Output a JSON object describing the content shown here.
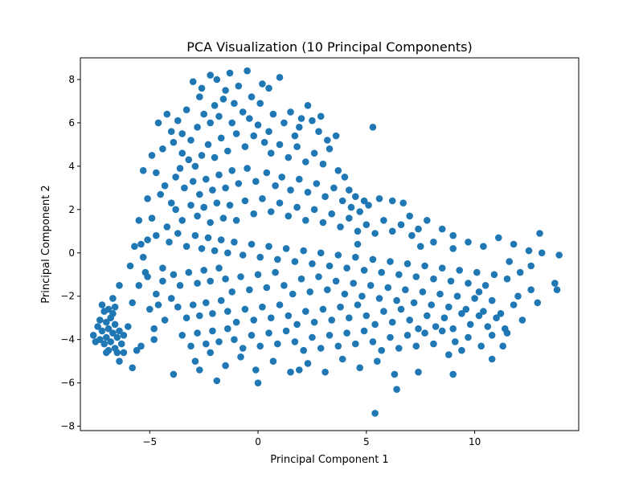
{
  "chart_data": {
    "type": "scatter",
    "title": "PCA Visualization (10 Principal Components)",
    "xlabel": "Principal Component 1",
    "ylabel": "Principal Component 2",
    "xlim": [
      -8.2,
      14.8
    ],
    "ylim": [
      -8.2,
      9.0
    ],
    "xticks": [
      -5,
      0,
      5,
      10
    ],
    "xtick_labels": [
      "−5",
      "0",
      "5",
      "10"
    ],
    "yticks": [
      -8,
      -6,
      -4,
      -2,
      0,
      2,
      4,
      6,
      8
    ],
    "ytick_labels": [
      "−8",
      "−6",
      "−4",
      "−2",
      "0",
      "2",
      "4",
      "6",
      "8"
    ],
    "grid": false,
    "legend": "none",
    "marker_color": "#1f77b4",
    "points": [
      [
        -7.6,
        -3.8
      ],
      [
        -7.4,
        -3.4
      ],
      [
        -7.3,
        -4.0
      ],
      [
        -7.2,
        -3.6
      ],
      [
        -7.1,
        -4.2
      ],
      [
        -7.0,
        -3.2
      ],
      [
        -7.0,
        -3.9
      ],
      [
        -6.9,
        -3.5
      ],
      [
        -6.8,
        -4.1
      ],
      [
        -6.8,
        -3.0
      ],
      [
        -6.7,
        -3.7
      ],
      [
        -6.6,
        -4.4
      ],
      [
        -6.6,
        -3.3
      ],
      [
        -6.5,
        -3.9
      ],
      [
        -6.4,
        -3.6
      ],
      [
        -6.3,
        -4.2
      ],
      [
        -7.5,
        -4.1
      ],
      [
        -7.3,
        -3.1
      ],
      [
        -7.1,
        -2.7
      ],
      [
        -6.9,
        -4.5
      ],
      [
        -6.7,
        -2.8
      ],
      [
        -6.5,
        -4.6
      ],
      [
        -6.2,
        -3.8
      ],
      [
        -6.4,
        -5.0
      ],
      [
        -7.0,
        -4.6
      ],
      [
        -6.9,
        -2.6
      ],
      [
        -7.2,
        -2.4
      ],
      [
        -6.6,
        -2.5
      ],
      [
        -6.0,
        -3.4
      ],
      [
        -6.2,
        -4.6
      ],
      [
        -6.7,
        -2.1
      ],
      [
        -6.4,
        -1.5
      ],
      [
        -5.8,
        -5.3
      ],
      [
        -5.6,
        -4.5
      ],
      [
        -5.4,
        -4.3
      ],
      [
        -5.8,
        -2.3
      ],
      [
        -5.5,
        -1.5
      ],
      [
        -5.2,
        -0.9
      ],
      [
        -5.1,
        0.6
      ],
      [
        -5.4,
        0.4
      ],
      [
        -4.9,
        1.6
      ],
      [
        -5.0,
        -2.6
      ],
      [
        -4.8,
        -3.5
      ],
      [
        -4.6,
        -2.4
      ],
      [
        -4.4,
        -0.7
      ],
      [
        -4.2,
        1.2
      ],
      [
        -4.0,
        2.3
      ],
      [
        -3.8,
        3.5
      ],
      [
        -4.5,
        2.7
      ],
      [
        -4.3,
        3.1
      ],
      [
        -4.7,
        3.7
      ],
      [
        -4.4,
        4.8
      ],
      [
        -4.0,
        5.6
      ],
      [
        -3.7,
        6.1
      ],
      [
        -3.3,
        6.6
      ],
      [
        -3.0,
        7.9
      ],
      [
        -2.6,
        7.6
      ],
      [
        -2.2,
        8.2
      ],
      [
        -1.9,
        8.0
      ],
      [
        -1.3,
        8.3
      ],
      [
        -0.9,
        7.7
      ],
      [
        -0.5,
        8.4
      ],
      [
        0.2,
        7.8
      ],
      [
        1.0,
        8.1
      ],
      [
        -3.5,
        4.6
      ],
      [
        -3.1,
        5.2
      ],
      [
        -2.8,
        5.8
      ],
      [
        -2.5,
        6.4
      ],
      [
        -2.0,
        6.8
      ],
      [
        -1.6,
        7.1
      ],
      [
        -1.1,
        6.9
      ],
      [
        -0.7,
        6.5
      ],
      [
        -0.3,
        7.2
      ],
      [
        0.1,
        6.9
      ],
      [
        0.7,
        6.4
      ],
      [
        1.2,
        6.0
      ],
      [
        1.5,
        6.5
      ],
      [
        1.9,
        5.8
      ],
      [
        2.3,
        6.8
      ],
      [
        2.5,
        6.1
      ],
      [
        -3.6,
        3.9
      ],
      [
        -3.2,
        4.3
      ],
      [
        -2.9,
        4.0
      ],
      [
        -2.6,
        4.5
      ],
      [
        -2.3,
        5.0
      ],
      [
        -2.0,
        4.4
      ],
      [
        -1.7,
        5.3
      ],
      [
        -1.4,
        4.7
      ],
      [
        -1.0,
        5.5
      ],
      [
        -0.6,
        4.9
      ],
      [
        -0.2,
        5.4
      ],
      [
        0.3,
        5.1
      ],
      [
        0.6,
        4.6
      ],
      [
        1.0,
        5.0
      ],
      [
        1.4,
        4.4
      ],
      [
        1.8,
        4.9
      ],
      [
        2.2,
        4.2
      ],
      [
        2.6,
        4.6
      ],
      [
        3.0,
        4.1
      ],
      [
        3.3,
        4.8
      ],
      [
        3.7,
        3.8
      ],
      [
        4.0,
        3.5
      ],
      [
        4.2,
        2.9
      ],
      [
        4.5,
        2.6
      ],
      [
        -3.4,
        3.0
      ],
      [
        -3.0,
        3.3
      ],
      [
        -2.7,
        2.7
      ],
      [
        -2.4,
        3.4
      ],
      [
        -2.1,
        2.9
      ],
      [
        -1.8,
        3.6
      ],
      [
        -1.5,
        3.0
      ],
      [
        -1.2,
        3.8
      ],
      [
        -0.9,
        3.2
      ],
      [
        -0.5,
        3.9
      ],
      [
        -0.1,
        3.3
      ],
      [
        0.4,
        3.7
      ],
      [
        0.8,
        3.1
      ],
      [
        1.1,
        3.5
      ],
      [
        1.5,
        2.9
      ],
      [
        1.9,
        3.4
      ],
      [
        2.3,
        2.8
      ],
      [
        2.7,
        3.2
      ],
      [
        3.1,
        2.6
      ],
      [
        3.5,
        3.0
      ],
      [
        3.9,
        2.4
      ],
      [
        4.3,
        2.1
      ],
      [
        4.7,
        1.9
      ],
      [
        5.1,
        2.2
      ],
      [
        -3.8,
        2.0
      ],
      [
        -3.5,
        1.5
      ],
      [
        -3.1,
        2.2
      ],
      [
        -2.8,
        1.7
      ],
      [
        -2.5,
        2.1
      ],
      [
        -2.2,
        1.4
      ],
      [
        -1.9,
        2.3
      ],
      [
        -1.6,
        1.6
      ],
      [
        -1.3,
        2.2
      ],
      [
        -1.0,
        1.5
      ],
      [
        -0.6,
        2.4
      ],
      [
        -0.2,
        1.8
      ],
      [
        0.2,
        2.5
      ],
      [
        0.6,
        1.9
      ],
      [
        1.0,
        2.3
      ],
      [
        1.4,
        1.7
      ],
      [
        1.8,
        2.1
      ],
      [
        2.2,
        1.5
      ],
      [
        2.6,
        2.0
      ],
      [
        3.0,
        1.4
      ],
      [
        3.4,
        1.8
      ],
      [
        3.8,
        1.2
      ],
      [
        4.2,
        1.6
      ],
      [
        4.6,
        1.0
      ],
      [
        5.0,
        1.3
      ],
      [
        5.4,
        0.9
      ],
      [
        5.8,
        1.5
      ],
      [
        6.2,
        1.0
      ],
      [
        6.6,
        1.3
      ],
      [
        7.0,
        1.7
      ],
      [
        7.4,
        1.1
      ],
      [
        7.8,
        1.5
      ],
      [
        -4.1,
        0.5
      ],
      [
        -3.7,
        0.9
      ],
      [
        -3.3,
        0.3
      ],
      [
        -2.9,
        0.8
      ],
      [
        -2.6,
        0.2
      ],
      [
        -2.3,
        0.7
      ],
      [
        -2.0,
        0.1
      ],
      [
        -1.7,
        0.6
      ],
      [
        -1.4,
        0.0
      ],
      [
        -1.1,
        0.5
      ],
      [
        -0.7,
        -0.1
      ],
      [
        -0.3,
        0.4
      ],
      [
        0.1,
        -0.2
      ],
      [
        0.5,
        0.3
      ],
      [
        0.9,
        -0.3
      ],
      [
        1.3,
        0.2
      ],
      [
        1.7,
        -0.4
      ],
      [
        2.1,
        0.1
      ],
      [
        2.5,
        -0.5
      ],
      [
        2.9,
        0.0
      ],
      [
        3.3,
        -0.6
      ],
      [
        3.7,
        -0.1
      ],
      [
        4.1,
        -0.7
      ],
      [
        4.5,
        -0.2
      ],
      [
        4.9,
        -0.8
      ],
      [
        5.3,
        -0.3
      ],
      [
        5.7,
        -0.9
      ],
      [
        6.1,
        -0.4
      ],
      [
        6.5,
        -1.0
      ],
      [
        6.9,
        -0.5
      ],
      [
        7.3,
        -1.1
      ],
      [
        7.7,
        -0.6
      ],
      [
        8.1,
        -1.2
      ],
      [
        8.5,
        -0.7
      ],
      [
        8.9,
        -1.3
      ],
      [
        9.3,
        -0.8
      ],
      [
        9.7,
        -1.4
      ],
      [
        10.1,
        -0.9
      ],
      [
        10.5,
        -1.5
      ],
      [
        10.9,
        -1.0
      ],
      [
        -3.9,
        -1.0
      ],
      [
        -3.6,
        -1.5
      ],
      [
        -3.2,
        -0.9
      ],
      [
        -2.8,
        -1.4
      ],
      [
        -2.5,
        -0.8
      ],
      [
        -2.2,
        -1.3
      ],
      [
        -1.8,
        -0.7
      ],
      [
        -1.5,
        -1.2
      ],
      [
        -1.2,
        -1.8
      ],
      [
        -0.8,
        -1.1
      ],
      [
        -0.4,
        -1.7
      ],
      [
        0.0,
        -1.0
      ],
      [
        0.4,
        -1.6
      ],
      [
        0.8,
        -0.9
      ],
      [
        1.2,
        -1.5
      ],
      [
        1.6,
        -1.9
      ],
      [
        2.0,
        -1.2
      ],
      [
        2.4,
        -1.8
      ],
      [
        2.8,
        -1.1
      ],
      [
        3.2,
        -1.7
      ],
      [
        3.6,
        -1.3
      ],
      [
        4.0,
        -1.9
      ],
      [
        4.4,
        -1.4
      ],
      [
        4.8,
        -2.0
      ],
      [
        5.2,
        -1.5
      ],
      [
        5.6,
        -2.1
      ],
      [
        6.0,
        -1.6
      ],
      [
        6.4,
        -2.2
      ],
      [
        6.8,
        -1.7
      ],
      [
        7.2,
        -2.3
      ],
      [
        7.6,
        -1.8
      ],
      [
        8.0,
        -2.4
      ],
      [
        8.4,
        -1.9
      ],
      [
        8.8,
        -2.5
      ],
      [
        9.2,
        -2.0
      ],
      [
        9.6,
        -2.6
      ],
      [
        10.0,
        -2.1
      ],
      [
        10.4,
        -2.7
      ],
      [
        10.8,
        -2.2
      ],
      [
        11.2,
        -2.8
      ],
      [
        -3.7,
        -2.5
      ],
      [
        -3.3,
        -3.0
      ],
      [
        -3.0,
        -2.4
      ],
      [
        -2.7,
        -2.9
      ],
      [
        -2.4,
        -2.3
      ],
      [
        -2.1,
        -2.8
      ],
      [
        -1.7,
        -2.2
      ],
      [
        -1.4,
        -2.7
      ],
      [
        -1.0,
        -3.2
      ],
      [
        -0.6,
        -2.6
      ],
      [
        -0.2,
        -3.1
      ],
      [
        0.2,
        -2.5
      ],
      [
        0.6,
        -3.0
      ],
      [
        1.0,
        -2.4
      ],
      [
        1.4,
        -2.9
      ],
      [
        1.8,
        -3.3
      ],
      [
        2.2,
        -2.7
      ],
      [
        2.6,
        -3.2
      ],
      [
        3.0,
        -2.6
      ],
      [
        3.4,
        -3.1
      ],
      [
        3.8,
        -2.5
      ],
      [
        4.2,
        -3.0
      ],
      [
        4.6,
        -2.4
      ],
      [
        5.0,
        -2.9
      ],
      [
        5.4,
        -3.3
      ],
      [
        5.8,
        -2.7
      ],
      [
        6.2,
        -3.2
      ],
      [
        6.6,
        -2.6
      ],
      [
        7.0,
        -3.1
      ],
      [
        7.4,
        -3.5
      ],
      [
        7.8,
        -2.9
      ],
      [
        8.2,
        -3.4
      ],
      [
        8.6,
        -3.0
      ],
      [
        9.0,
        -3.5
      ],
      [
        9.4,
        -2.8
      ],
      [
        9.8,
        -3.3
      ],
      [
        10.2,
        -2.9
      ],
      [
        10.6,
        -3.4
      ],
      [
        11.0,
        -3.0
      ],
      [
        11.4,
        -3.5
      ],
      [
        -3.5,
        -3.8
      ],
      [
        -3.1,
        -4.3
      ],
      [
        -2.8,
        -3.7
      ],
      [
        -2.4,
        -4.2
      ],
      [
        -2.1,
        -3.6
      ],
      [
        -1.8,
        -4.1
      ],
      [
        -1.4,
        -3.5
      ],
      [
        -1.1,
        -4.0
      ],
      [
        -0.7,
        -4.4
      ],
      [
        -0.3,
        -3.8
      ],
      [
        0.1,
        -4.3
      ],
      [
        0.5,
        -3.7
      ],
      [
        0.9,
        -4.2
      ],
      [
        1.3,
        -3.6
      ],
      [
        1.7,
        -4.1
      ],
      [
        2.1,
        -4.5
      ],
      [
        2.5,
        -3.9
      ],
      [
        2.9,
        -4.4
      ],
      [
        3.3,
        -3.8
      ],
      [
        3.7,
        -4.3
      ],
      [
        4.1,
        -3.7
      ],
      [
        4.5,
        -4.2
      ],
      [
        4.9,
        -3.6
      ],
      [
        5.3,
        -4.1
      ],
      [
        5.7,
        -4.5
      ],
      [
        6.1,
        -3.9
      ],
      [
        6.5,
        -4.4
      ],
      [
        6.9,
        -3.8
      ],
      [
        7.3,
        -4.3
      ],
      [
        7.7,
        -3.7
      ],
      [
        8.1,
        -4.2
      ],
      [
        8.5,
        -3.6
      ],
      [
        9.1,
        -4.1
      ],
      [
        9.7,
        -3.9
      ],
      [
        10.3,
        -4.3
      ],
      [
        10.8,
        -4.9
      ],
      [
        11.5,
        -3.7
      ],
      [
        12.2,
        -3.1
      ],
      [
        11.8,
        -2.4
      ],
      [
        12.6,
        -1.7
      ],
      [
        -2.9,
        -5.0
      ],
      [
        -2.2,
        -4.6
      ],
      [
        -1.5,
        -5.2
      ],
      [
        -0.8,
        -4.8
      ],
      [
        -0.1,
        -5.4
      ],
      [
        0.7,
        -5.0
      ],
      [
        1.5,
        -5.5
      ],
      [
        2.3,
        -5.1
      ],
      [
        3.1,
        -5.5
      ],
      [
        3.9,
        -4.9
      ],
      [
        4.7,
        -5.3
      ],
      [
        5.5,
        -5.0
      ],
      [
        6.3,
        -5.6
      ],
      [
        7.4,
        -5.5
      ],
      [
        6.4,
        -6.3
      ],
      [
        9.0,
        -5.6
      ],
      [
        -3.9,
        -5.6
      ],
      [
        -1.9,
        -5.9
      ],
      [
        0.0,
        -6.0
      ],
      [
        5.4,
        -7.4
      ],
      [
        5.3,
        5.8
      ],
      [
        -2.7,
        -5.4
      ],
      [
        1.9,
        -5.4
      ],
      [
        -4.8,
        -4.0
      ],
      [
        11.6,
        -0.4
      ],
      [
        12.1,
        -0.9
      ],
      [
        12.6,
        -0.6
      ],
      [
        13.1,
        0.0
      ],
      [
        13.0,
        0.9
      ],
      [
        13.9,
        -0.1
      ],
      [
        13.7,
        -1.4
      ],
      [
        13.8,
        -1.7
      ],
      [
        12.5,
        0.1
      ],
      [
        11.8,
        0.4
      ],
      [
        11.1,
        0.7
      ],
      [
        10.4,
        0.3
      ],
      [
        9.7,
        0.5
      ],
      [
        9.0,
        0.8
      ],
      [
        8.5,
        1.1
      ],
      [
        9.0,
        0.2
      ],
      [
        8.1,
        0.5
      ],
      [
        7.5,
        0.3
      ],
      [
        7.1,
        0.8
      ],
      [
        6.7,
        2.3
      ],
      [
        6.2,
        2.4
      ],
      [
        5.6,
        2.5
      ],
      [
        4.9,
        2.4
      ],
      [
        4.6,
        0.4
      ],
      [
        10.2,
        -1.8
      ],
      [
        11.5,
        -1.2
      ],
      [
        12.0,
        -2.0
      ],
      [
        12.9,
        -2.3
      ],
      [
        10.8,
        -3.8
      ],
      [
        11.3,
        -4.3
      ],
      [
        9.4,
        -4.5
      ],
      [
        8.8,
        -4.7
      ],
      [
        -2.2,
        6.0
      ],
      [
        -1.8,
        6.3
      ],
      [
        -0.4,
        6.2
      ],
      [
        0.0,
        5.9
      ],
      [
        0.5,
        5.6
      ],
      [
        -1.2,
        6.0
      ],
      [
        -3.9,
        5.1
      ],
      [
        -3.5,
        5.5
      ],
      [
        -4.6,
        6.0
      ],
      [
        -4.2,
        6.4
      ],
      [
        -2.7,
        7.2
      ],
      [
        -1.5,
        7.5
      ],
      [
        0.5,
        7.6
      ],
      [
        2.0,
        6.2
      ],
      [
        1.7,
        5.4
      ],
      [
        2.8,
        5.6
      ],
      [
        3.2,
        5.2
      ],
      [
        3.6,
        5.4
      ],
      [
        2.9,
        6.3
      ],
      [
        -5.3,
        3.8
      ],
      [
        -4.9,
        4.5
      ],
      [
        -5.1,
        2.5
      ],
      [
        -5.5,
        1.5
      ],
      [
        -5.7,
        0.3
      ],
      [
        -5.9,
        -0.6
      ],
      [
        -5.3,
        -0.2
      ],
      [
        -4.7,
        0.8
      ],
      [
        -4.4,
        -1.3
      ],
      [
        -4.7,
        -1.9
      ],
      [
        -5.1,
        -1.1
      ],
      [
        -4.0,
        -2.1
      ],
      [
        -4.3,
        -3.1
      ]
    ]
  }
}
